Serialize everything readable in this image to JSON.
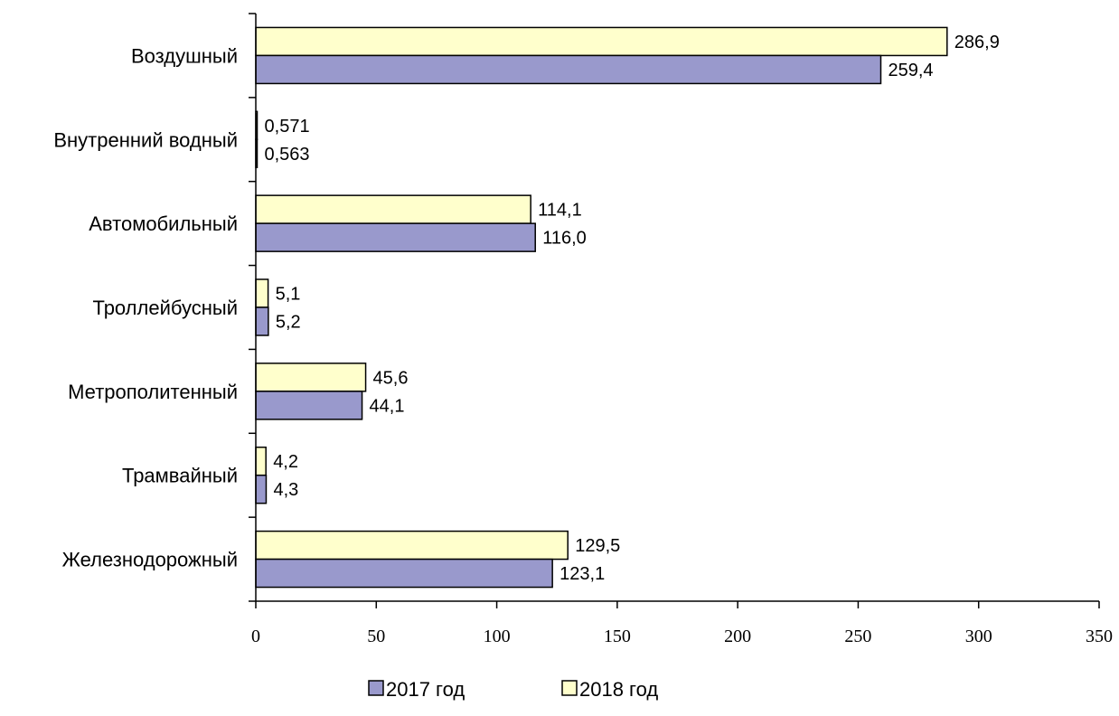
{
  "chart_data": {
    "type": "bar",
    "orientation": "horizontal",
    "categories": [
      "Воздушный",
      "Внутренний водный",
      "Автомобильный",
      "Троллейбусный",
      "Метрополитенный",
      "Трамвайный",
      "Железнодорожный"
    ],
    "series": [
      {
        "name": "2018 год",
        "color": "#FFFFCC",
        "values": [
          286.9,
          0.571,
          114.1,
          5.1,
          45.6,
          4.2,
          129.5
        ],
        "labels": [
          "286,9",
          "0,571",
          "114,1",
          "5,1",
          "45,6",
          "4,2",
          "129,5"
        ]
      },
      {
        "name": "2017 год",
        "color": "#9999CC",
        "values": [
          259.4,
          0.563,
          116.0,
          5.2,
          44.1,
          4.3,
          123.1
        ],
        "labels": [
          "259,4",
          "0,563",
          "116,0",
          "5,2",
          "44,1",
          "4,3",
          "123,1"
        ]
      }
    ],
    "xlim": [
      0,
      350
    ],
    "xticks": [
      0,
      50,
      100,
      150,
      200,
      250,
      300,
      350
    ],
    "xtick_labels": [
      "0",
      "50",
      "100",
      "150",
      "200",
      "250",
      "300",
      "350"
    ],
    "grid": false,
    "legend": {
      "position": "bottom-center",
      "items": [
        {
          "label": "2017 год",
          "color": "#9999CC"
        },
        {
          "label": "2018 год",
          "color": "#FFFFCC"
        }
      ]
    }
  }
}
